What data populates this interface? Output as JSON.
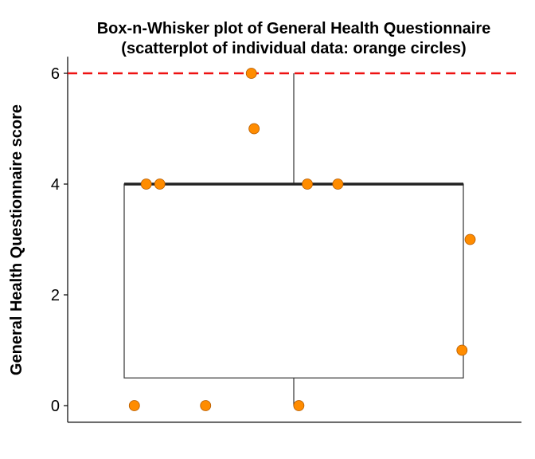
{
  "chart_data": {
    "type": "box",
    "title_lines": [
      "Box-n-Whisker plot of General Health Questionnaire",
      "(scatterplot of individual data: orange circles)"
    ],
    "xlabel": "",
    "ylabel": "General Health Questionnaire score",
    "ylim": [
      -0.3,
      6.3
    ],
    "yticks": [
      0,
      2,
      4,
      6
    ],
    "grid": false,
    "legend": "none",
    "box": {
      "min": 0,
      "q1": 0.5,
      "median": 4,
      "q3": 4,
      "max": 6
    },
    "reference_line": {
      "y": 6,
      "style": "dashed",
      "color": "#ee1111"
    },
    "points": [
      {
        "x": -0.47,
        "y": 0
      },
      {
        "x": -0.26,
        "y": 0
      },
      {
        "x": 0.015,
        "y": 0
      },
      {
        "x": 0.496,
        "y": 1
      },
      {
        "x": 0.52,
        "y": 3
      },
      {
        "x": -0.435,
        "y": 4
      },
      {
        "x": -0.395,
        "y": 4
      },
      {
        "x": 0.04,
        "y": 4
      },
      {
        "x": 0.13,
        "y": 4
      },
      {
        "x": -0.117,
        "y": 5
      },
      {
        "x": -0.125,
        "y": 6
      }
    ],
    "x_jitter_range": [
      -0.67,
      0.67
    ],
    "colors": {
      "point_fill": "#ff8c00",
      "point_stroke": "#b35a00",
      "box_stroke": "#333333",
      "median": "#222222"
    }
  }
}
